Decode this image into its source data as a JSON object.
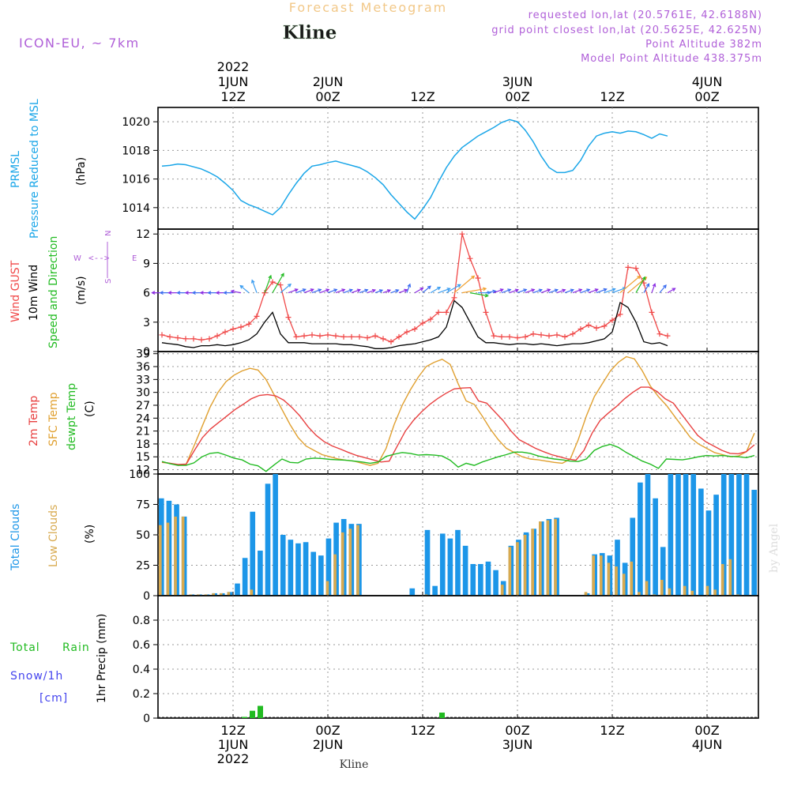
{
  "header": {
    "title": "Forecast Meteogram",
    "station": "Kline",
    "model": "ICON-EU, ~ 7km",
    "requested": "requested lon,lat (20.5761E, 42.6188N)",
    "grid_point": "grid point closest lon,lat (20.5625E, 42.625N)",
    "point_altitude": "Point Altitude 382m",
    "model_altitude": "Model Point Altitude 438.375m",
    "credit": "by Angel",
    "footer_station": "Kline"
  },
  "time_axis": {
    "top": [
      {
        "id": "t0",
        "lines": [
          "2022",
          "1JUN",
          "12Z"
        ]
      },
      {
        "id": "t1",
        "lines": [
          "2JUN",
          "00Z"
        ]
      },
      {
        "id": "t2",
        "lines": [
          "12Z"
        ]
      },
      {
        "id": "t3",
        "lines": [
          "3JUN",
          "00Z"
        ]
      },
      {
        "id": "t4",
        "lines": [
          "12Z"
        ]
      },
      {
        "id": "t5",
        "lines": [
          "4JUN",
          "00Z"
        ]
      }
    ],
    "bottom": [
      {
        "id": "b0",
        "lines": [
          "12Z",
          "1JUN",
          "2022"
        ]
      },
      {
        "id": "b1",
        "lines": [
          "00Z",
          "2JUN"
        ]
      },
      {
        "id": "b2",
        "lines": [
          "12Z"
        ]
      },
      {
        "id": "b3",
        "lines": [
          "00Z",
          "3JUN"
        ]
      },
      {
        "id": "b4",
        "lines": [
          "12Z"
        ]
      },
      {
        "id": "b5",
        "lines": [
          "00Z",
          "4JUN"
        ]
      }
    ],
    "ticks_hours": [
      0,
      12,
      24,
      36,
      48,
      60
    ],
    "hour_range": [
      -9.5,
      66.5
    ]
  },
  "colors": {
    "pressure": "#1aa6e8",
    "gust": "#f04848",
    "wind": "#000000",
    "direction": "#22bb22",
    "t2m": "#e84040",
    "sfc": "#e0a030",
    "dewpt": "#22bb22",
    "total_clouds": "#1c96e8",
    "low_clouds": "#d8aa50",
    "precip": "#22bb22",
    "snow_label": "#4444ee",
    "info": "#b060d8",
    "title": "#f2c888",
    "compass": "#b060d8"
  },
  "panel_labels": {
    "pressure": [
      "PRMSL",
      "Pressure Reduced to MSL",
      "(hPa)"
    ],
    "wind": [
      "Wind GUST",
      "10m Wind",
      "Speed and Direction",
      "(m/s)"
    ],
    "compass": {
      "n": "N",
      "s": "S",
      "w": "W",
      "e": "E"
    },
    "temp": [
      "2m Temp",
      "SFC Temp",
      "dewpt Temp",
      "(C)"
    ],
    "clouds": [
      "Total Clouds",
      "Low Clouds",
      "(%)"
    ],
    "precip": [
      "Total",
      "Rain",
      "Snow/1h",
      "[cm]",
      "1hr Precip (mm)"
    ]
  },
  "chart_data": [
    {
      "id": "pressure",
      "type": "line",
      "title": "PRMSL Pressure Reduced to MSL",
      "ylabel": "(hPa)",
      "ylim": [
        1012.5,
        1021
      ],
      "yticks": [
        1014,
        1016,
        1018,
        1020
      ],
      "x_hours_start": -9,
      "x_step": 1,
      "series": [
        {
          "name": "PRMSL",
          "values": [
            1016.9,
            1016.95,
            1017.05,
            1017.0,
            1016.85,
            1016.7,
            1016.45,
            1016.15,
            1015.7,
            1015.2,
            1014.5,
            1014.2,
            1014.0,
            1013.75,
            1013.5,
            1014.0,
            1014.9,
            1015.7,
            1016.4,
            1016.9,
            1017.0,
            1017.15,
            1017.25,
            1017.1,
            1016.95,
            1016.8,
            1016.5,
            1016.1,
            1015.6,
            1014.9,
            1014.3,
            1013.7,
            1013.2,
            1013.9,
            1014.7,
            1015.8,
            1016.8,
            1017.6,
            1018.2,
            1018.6,
            1019.0,
            1019.3,
            1019.6,
            1019.95,
            1020.15,
            1020.0,
            1019.4,
            1018.6,
            1017.6,
            1016.8,
            1016.45,
            1016.45,
            1016.6,
            1017.3,
            1018.3,
            1019.0,
            1019.2,
            1019.3,
            1019.2,
            1019.35,
            1019.3,
            1019.1,
            1018.85,
            1019.15,
            1019.0
          ]
        }
      ]
    },
    {
      "id": "wind",
      "type": "line",
      "title": "Wind GUST / 10m Wind Speed and Direction",
      "ylabel": "(m/s)",
      "ylim": [
        0,
        12.5
      ],
      "yticks": [
        0,
        3,
        6,
        9,
        12
      ],
      "x_hours_start": -9,
      "x_step": 1,
      "series": [
        {
          "name": "Wind GUST",
          "values": [
            1.7,
            1.5,
            1.4,
            1.3,
            1.3,
            1.2,
            1.3,
            1.6,
            2.0,
            2.3,
            2.5,
            2.8,
            3.6,
            6.0,
            7.1,
            6.8,
            3.5,
            1.5,
            1.6,
            1.7,
            1.6,
            1.7,
            1.6,
            1.5,
            1.5,
            1.5,
            1.4,
            1.6,
            1.3,
            1.0,
            1.5,
            2.0,
            2.3,
            2.9,
            3.3,
            4.0,
            4.0,
            5.5,
            12.0,
            9.5,
            7.5,
            4.0,
            1.6,
            1.5,
            1.5,
            1.4,
            1.5,
            1.8,
            1.7,
            1.6,
            1.7,
            1.5,
            1.8,
            2.3,
            2.7,
            2.4,
            2.6,
            3.2,
            3.8,
            8.6,
            8.5,
            7.0,
            4.0,
            1.8,
            1.6
          ]
        },
        {
          "name": "10m Wind",
          "values": [
            0.9,
            0.8,
            0.7,
            0.5,
            0.4,
            0.6,
            0.6,
            0.7,
            0.6,
            0.7,
            0.9,
            1.2,
            1.8,
            3.0,
            4.0,
            1.8,
            0.9,
            0.9,
            0.9,
            0.8,
            0.8,
            0.8,
            0.8,
            0.7,
            0.7,
            0.6,
            0.5,
            0.3,
            0.3,
            0.4,
            0.6,
            0.7,
            0.8,
            1.0,
            1.2,
            1.5,
            2.5,
            5.2,
            4.5,
            3.0,
            1.5,
            0.9,
            0.9,
            0.8,
            0.7,
            0.8,
            0.8,
            0.7,
            0.8,
            0.7,
            0.6,
            0.7,
            0.8,
            0.8,
            0.9,
            1.1,
            1.3,
            2.0,
            5.0,
            4.5,
            3.0,
            1.0,
            0.8,
            0.9,
            0.6
          ]
        },
        {
          "name": "Direction",
          "unit": "deg",
          "values": [
            90,
            90,
            90,
            90,
            90,
            90,
            90,
            90,
            90,
            90,
            100,
            130,
            160,
            200,
            210,
            230,
            250,
            250,
            250,
            250,
            250,
            250,
            250,
            250,
            250,
            250,
            250,
            250,
            250,
            250,
            250,
            200,
            240,
            230,
            240,
            250,
            240,
            230,
            260,
            280,
            270,
            260,
            250,
            250,
            250,
            250,
            250,
            250,
            250,
            250,
            250,
            250,
            250,
            250,
            250,
            250,
            250,
            250,
            230,
            230,
            210,
            210,
            200,
            220,
            240
          ]
        }
      ]
    },
    {
      "id": "temperature",
      "type": "line",
      "title": "2m Temp / SFC Temp / dewpt Temp",
      "ylabel": "(C)",
      "ylim": [
        11,
        39.5
      ],
      "yticks": [
        12,
        15,
        18,
        21,
        24,
        27,
        30,
        33,
        36,
        39
      ],
      "x_hours_start": -9,
      "x_step": 1,
      "series": [
        {
          "name": "2m Temp",
          "values": [
            13.8,
            13.5,
            13.2,
            13.3,
            16.5,
            19.5,
            21.5,
            23.0,
            24.5,
            26.0,
            27.2,
            28.5,
            29.3,
            29.5,
            29.2,
            28.2,
            26.5,
            24.5,
            22.0,
            20.0,
            18.5,
            17.5,
            16.8,
            16.0,
            15.3,
            14.8,
            14.3,
            13.8,
            14.0,
            17.5,
            21.0,
            23.5,
            25.5,
            27.2,
            28.6,
            29.8,
            30.8,
            31.0,
            31.1,
            28.0,
            27.5,
            25.5,
            23.5,
            21.0,
            19.0,
            18.0,
            17.0,
            16.2,
            15.5,
            15.0,
            14.5,
            14.2,
            16.5,
            20.5,
            23.5,
            25.2,
            26.7,
            28.5,
            30.0,
            31.2,
            31.2,
            30.2,
            28.5,
            27.5,
            25.0,
            22.5,
            20.0,
            18.5,
            17.5,
            16.5,
            15.8,
            15.7,
            16.2,
            17.8
          ]
        },
        {
          "name": "SFC Temp",
          "values": [
            13.7,
            13.5,
            13.0,
            13.2,
            17.5,
            22.0,
            26.5,
            30.0,
            32.5,
            34.0,
            35.0,
            35.6,
            35.2,
            33.0,
            29.5,
            26.0,
            22.5,
            19.5,
            17.5,
            16.5,
            15.5,
            15.0,
            14.5,
            14.2,
            14.0,
            13.5,
            13.0,
            13.5,
            17.0,
            22.5,
            27.0,
            30.5,
            33.5,
            36.0,
            37.0,
            37.7,
            36.5,
            32.0,
            28.0,
            27.2,
            24.5,
            21.5,
            19.0,
            17.0,
            16.0,
            15.0,
            14.5,
            14.3,
            14.0,
            13.7,
            13.5,
            14.5,
            19.0,
            24.5,
            29.0,
            32.0,
            35.0,
            37.0,
            38.3,
            37.8,
            35.0,
            31.5,
            29.0,
            27.0,
            24.5,
            22.0,
            19.5,
            18.0,
            17.0,
            16.0,
            15.5,
            15.0,
            15.2,
            16.2,
            20.5
          ]
        },
        {
          "name": "dewpt Temp",
          "values": [
            13.9,
            13.4,
            13.0,
            13.0,
            13.6,
            15.0,
            15.8,
            16.0,
            15.4,
            14.7,
            14.3,
            13.3,
            12.9,
            11.6,
            13.1,
            14.5,
            13.7,
            13.6,
            14.5,
            14.7,
            14.6,
            14.4,
            14.3,
            14.2,
            14.0,
            13.8,
            13.5,
            13.8,
            15.1,
            15.6,
            16.0,
            15.8,
            15.4,
            15.5,
            15.4,
            15.2,
            14.2,
            12.6,
            13.5,
            13.0,
            13.8,
            14.4,
            15.0,
            15.5,
            16.1,
            16.1,
            15.8,
            15.2,
            14.8,
            14.5,
            14.3,
            14.0,
            13.9,
            14.5,
            16.5,
            17.4,
            17.9,
            17.2,
            16.0,
            15.0,
            14.0,
            13.3,
            12.3,
            14.5,
            14.4,
            14.3,
            14.6,
            15.0,
            15.3,
            15.2,
            15.3,
            15.1,
            15.0,
            14.8,
            15.3
          ]
        }
      ]
    },
    {
      "id": "clouds",
      "type": "bar",
      "title": "Total Clouds / Low Clouds",
      "ylabel": "(%)",
      "ylim": [
        0,
        100
      ],
      "yticks": [
        0,
        25,
        50,
        75,
        100
      ],
      "x_hours_start": -9.5,
      "x_step": 1,
      "series": [
        {
          "name": "Total Clouds",
          "values": [
            80,
            78,
            75,
            65,
            1,
            1,
            1,
            2,
            2,
            3,
            10,
            31,
            69,
            37,
            92,
            100,
            50,
            46,
            43,
            44,
            36,
            33,
            47,
            60,
            63,
            59,
            59,
            0,
            0,
            0,
            0,
            0,
            0,
            6,
            0,
            54,
            8,
            51,
            47,
            54,
            41,
            26,
            26,
            28,
            21,
            12,
            41,
            46,
            52,
            55,
            61,
            63,
            64,
            0,
            0,
            0,
            2,
            34,
            35,
            33,
            46,
            27,
            64,
            93,
            100,
            80,
            40,
            100,
            100,
            100,
            100,
            88,
            70,
            83,
            100,
            100,
            100,
            100,
            87
          ]
        },
        {
          "name": "Low Clouds",
          "values": [
            58,
            60,
            65,
            65,
            1,
            1,
            1,
            2,
            2,
            3,
            0,
            0,
            5,
            0,
            0,
            0,
            0,
            0,
            0,
            0,
            0,
            0,
            12,
            34,
            52,
            55,
            58,
            0,
            0,
            0,
            0,
            0,
            0,
            0,
            0,
            1,
            0,
            0,
            0,
            0,
            0,
            0,
            0,
            0,
            0,
            9,
            40,
            44,
            50,
            55,
            61,
            62,
            63,
            0,
            0,
            0,
            3,
            33,
            33,
            27,
            24,
            18,
            28,
            3,
            12,
            1,
            13,
            6,
            0,
            8,
            4,
            0,
            8,
            5,
            26,
            30,
            1,
            0,
            0
          ]
        }
      ]
    },
    {
      "id": "precip",
      "type": "bar",
      "title": "1hr Precip (mm)",
      "ylabel": "1hr Precip (mm)",
      "ylim": [
        0,
        1.0
      ],
      "yticks": [
        0,
        0.2,
        0.4,
        0.6,
        0.8
      ],
      "x_hours_start": -9.5,
      "x_step": 1,
      "series": [
        {
          "name": "Total Rain",
          "points": [
            {
              "hour": 1.5,
              "value": 0.01
            },
            {
              "hour": 2.5,
              "value": 0.06
            },
            {
              "hour": 3.5,
              "value": 0.1
            },
            {
              "hour": 26.5,
              "value": 0.045
            }
          ]
        }
      ]
    }
  ]
}
